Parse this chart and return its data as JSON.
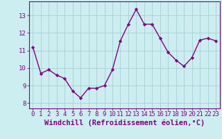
{
  "x": [
    0,
    1,
    2,
    3,
    4,
    5,
    6,
    7,
    8,
    9,
    10,
    11,
    12,
    13,
    14,
    15,
    16,
    17,
    18,
    19,
    20,
    21,
    22,
    23
  ],
  "y": [
    11.2,
    9.7,
    9.9,
    9.6,
    9.4,
    8.7,
    8.3,
    8.85,
    8.85,
    9.0,
    9.9,
    11.55,
    12.5,
    13.35,
    12.5,
    12.5,
    11.7,
    10.9,
    10.45,
    10.1,
    10.6,
    11.6,
    11.7,
    11.55
  ],
  "line_color": "#800080",
  "marker": "D",
  "marker_size": 2.2,
  "background_color": "#cceef0",
  "grid_color": "#aad4d8",
  "xlabel": "Windchill (Refroidissement éolien,°C)",
  "xlabel_color": "#800080",
  "xlabel_fontsize": 7.5,
  "ylabel_ticks": [
    8,
    9,
    10,
    11,
    12,
    13
  ],
  "xtick_labels": [
    "0",
    "1",
    "2",
    "3",
    "4",
    "5",
    "6",
    "7",
    "8",
    "9",
    "10",
    "11",
    "12",
    "13",
    "14",
    "15",
    "16",
    "17",
    "18",
    "19",
    "20",
    "21",
    "22",
    "23"
  ],
  "ylim": [
    7.7,
    13.8
  ],
  "xlim": [
    -0.5,
    23.5
  ],
  "tick_color": "#800080",
  "tick_fontsize": 6.5,
  "spine_color": "#800080",
  "linewidth": 1.0
}
